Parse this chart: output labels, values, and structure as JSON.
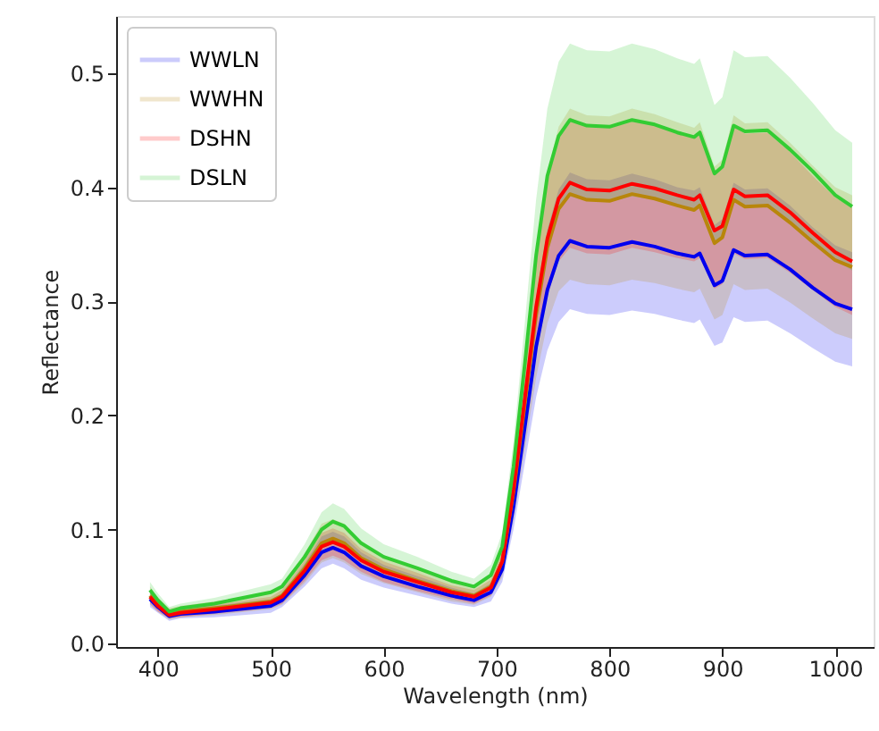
{
  "chart_data": {
    "type": "line",
    "xlabel": "Wavelength (nm)",
    "ylabel": "Reflectance",
    "x": [
      393,
      400,
      410,
      420,
      450,
      500,
      510,
      530,
      545,
      555,
      565,
      580,
      600,
      630,
      660,
      680,
      695,
      705,
      715,
      725,
      735,
      745,
      755,
      765,
      780,
      800,
      820,
      840,
      860,
      875,
      880,
      893,
      900,
      910,
      920,
      940,
      960,
      980,
      1000,
      1015
    ],
    "series": [
      {
        "name": "WWLN",
        "color": "#0000ee",
        "values": [
          0.039,
          0.032,
          0.024,
          0.026,
          0.028,
          0.033,
          0.038,
          0.06,
          0.08,
          0.084,
          0.08,
          0.068,
          0.059,
          0.05,
          0.042,
          0.038,
          0.045,
          0.065,
          0.12,
          0.19,
          0.26,
          0.31,
          0.34,
          0.353,
          0.348,
          0.347,
          0.352,
          0.348,
          0.342,
          0.339,
          0.342,
          0.314,
          0.318,
          0.345,
          0.34,
          0.341,
          0.328,
          0.312,
          0.298,
          0.293
        ],
        "lower": [
          0.032,
          0.027,
          0.02,
          0.022,
          0.023,
          0.027,
          0.032,
          0.05,
          0.066,
          0.07,
          0.066,
          0.056,
          0.049,
          0.042,
          0.035,
          0.032,
          0.037,
          0.054,
          0.1,
          0.158,
          0.216,
          0.257,
          0.282,
          0.293,
          0.289,
          0.288,
          0.292,
          0.289,
          0.284,
          0.281,
          0.284,
          0.261,
          0.264,
          0.286,
          0.282,
          0.283,
          0.272,
          0.259,
          0.247,
          0.243
        ],
        "upper": [
          0.046,
          0.037,
          0.028,
          0.03,
          0.033,
          0.039,
          0.044,
          0.07,
          0.094,
          0.098,
          0.094,
          0.08,
          0.069,
          0.059,
          0.049,
          0.044,
          0.053,
          0.076,
          0.14,
          0.222,
          0.304,
          0.363,
          0.398,
          0.413,
          0.407,
          0.406,
          0.412,
          0.407,
          0.4,
          0.397,
          0.4,
          0.367,
          0.372,
          0.404,
          0.398,
          0.399,
          0.384,
          0.365,
          0.349,
          0.343
        ]
      },
      {
        "name": "WWHN",
        "color": "#b8860b",
        "values": [
          0.042,
          0.034,
          0.026,
          0.028,
          0.031,
          0.037,
          0.042,
          0.066,
          0.088,
          0.092,
          0.088,
          0.075,
          0.065,
          0.055,
          0.046,
          0.042,
          0.05,
          0.072,
          0.133,
          0.21,
          0.288,
          0.347,
          0.381,
          0.394,
          0.389,
          0.388,
          0.394,
          0.39,
          0.384,
          0.38,
          0.384,
          0.351,
          0.356,
          0.389,
          0.383,
          0.384,
          0.369,
          0.352,
          0.336,
          0.33
        ],
        "lower": [
          0.034,
          0.028,
          0.021,
          0.023,
          0.025,
          0.03,
          0.034,
          0.053,
          0.071,
          0.075,
          0.071,
          0.061,
          0.053,
          0.045,
          0.037,
          0.034,
          0.041,
          0.058,
          0.108,
          0.17,
          0.233,
          0.281,
          0.309,
          0.319,
          0.315,
          0.314,
          0.319,
          0.316,
          0.311,
          0.308,
          0.311,
          0.284,
          0.288,
          0.315,
          0.31,
          0.311,
          0.299,
          0.285,
          0.272,
          0.267
        ],
        "upper": [
          0.05,
          0.04,
          0.031,
          0.033,
          0.037,
          0.044,
          0.05,
          0.079,
          0.105,
          0.109,
          0.105,
          0.089,
          0.077,
          0.065,
          0.055,
          0.05,
          0.06,
          0.086,
          0.158,
          0.25,
          0.343,
          0.413,
          0.453,
          0.469,
          0.463,
          0.462,
          0.469,
          0.464,
          0.457,
          0.452,
          0.457,
          0.418,
          0.424,
          0.463,
          0.456,
          0.457,
          0.439,
          0.419,
          0.4,
          0.393
        ]
      },
      {
        "name": "DSHN",
        "color": "#ff0000",
        "values": [
          0.041,
          0.033,
          0.025,
          0.027,
          0.03,
          0.036,
          0.041,
          0.064,
          0.085,
          0.089,
          0.085,
          0.073,
          0.063,
          0.054,
          0.045,
          0.041,
          0.049,
          0.072,
          0.135,
          0.215,
          0.295,
          0.355,
          0.39,
          0.404,
          0.398,
          0.397,
          0.403,
          0.399,
          0.393,
          0.389,
          0.393,
          0.362,
          0.366,
          0.398,
          0.392,
          0.393,
          0.378,
          0.36,
          0.343,
          0.335
        ],
        "lower": [
          0.035,
          0.028,
          0.022,
          0.023,
          0.026,
          0.031,
          0.035,
          0.055,
          0.073,
          0.077,
          0.073,
          0.063,
          0.054,
          0.046,
          0.039,
          0.035,
          0.042,
          0.062,
          0.116,
          0.185,
          0.254,
          0.305,
          0.335,
          0.347,
          0.342,
          0.341,
          0.347,
          0.343,
          0.338,
          0.335,
          0.338,
          0.311,
          0.315,
          0.342,
          0.337,
          0.338,
          0.325,
          0.31,
          0.295,
          0.288
        ],
        "upper": [
          0.047,
          0.038,
          0.029,
          0.031,
          0.034,
          0.041,
          0.047,
          0.073,
          0.097,
          0.101,
          0.097,
          0.083,
          0.072,
          0.062,
          0.051,
          0.047,
          0.056,
          0.082,
          0.154,
          0.245,
          0.336,
          0.405,
          0.445,
          0.461,
          0.454,
          0.453,
          0.459,
          0.455,
          0.448,
          0.443,
          0.448,
          0.413,
          0.417,
          0.454,
          0.447,
          0.448,
          0.431,
          0.41,
          0.391,
          0.382
        ]
      },
      {
        "name": "DSLN",
        "color": "#33cc33",
        "values": [
          0.047,
          0.038,
          0.028,
          0.031,
          0.035,
          0.045,
          0.05,
          0.076,
          0.1,
          0.107,
          0.103,
          0.088,
          0.076,
          0.066,
          0.055,
          0.05,
          0.06,
          0.085,
          0.155,
          0.245,
          0.34,
          0.41,
          0.445,
          0.459,
          0.454,
          0.453,
          0.459,
          0.455,
          0.448,
          0.444,
          0.448,
          0.412,
          0.418,
          0.454,
          0.449,
          0.45,
          0.433,
          0.414,
          0.393,
          0.383
        ],
        "lower": [
          0.04,
          0.032,
          0.024,
          0.027,
          0.03,
          0.038,
          0.043,
          0.065,
          0.086,
          0.091,
          0.088,
          0.075,
          0.065,
          0.056,
          0.047,
          0.043,
          0.051,
          0.073,
          0.133,
          0.209,
          0.291,
          0.351,
          0.38,
          0.392,
          0.388,
          0.387,
          0.392,
          0.389,
          0.383,
          0.38,
          0.383,
          0.352,
          0.357,
          0.388,
          0.384,
          0.385,
          0.37,
          0.354,
          0.336,
          0.327
        ],
        "upper": [
          0.054,
          0.044,
          0.032,
          0.035,
          0.04,
          0.052,
          0.057,
          0.087,
          0.115,
          0.123,
          0.118,
          0.101,
          0.087,
          0.076,
          0.063,
          0.057,
          0.069,
          0.097,
          0.177,
          0.281,
          0.389,
          0.469,
          0.51,
          0.526,
          0.52,
          0.519,
          0.526,
          0.521,
          0.513,
          0.508,
          0.513,
          0.472,
          0.479,
          0.52,
          0.514,
          0.515,
          0.496,
          0.474,
          0.45,
          0.439
        ]
      }
    ],
    "xlim": [
      363,
      1034
    ],
    "ylim": [
      -0.003,
      0.55
    ],
    "xticks": [
      400,
      500,
      600,
      700,
      800,
      900,
      1000
    ],
    "yticks": [
      {
        "value": 0,
        "label": "0.0"
      },
      0.1,
      0.2,
      0.3,
      0.4,
      0.5
    ],
    "grid": false,
    "legend": "top left",
    "marker": "none",
    "line_style": "solid"
  }
}
